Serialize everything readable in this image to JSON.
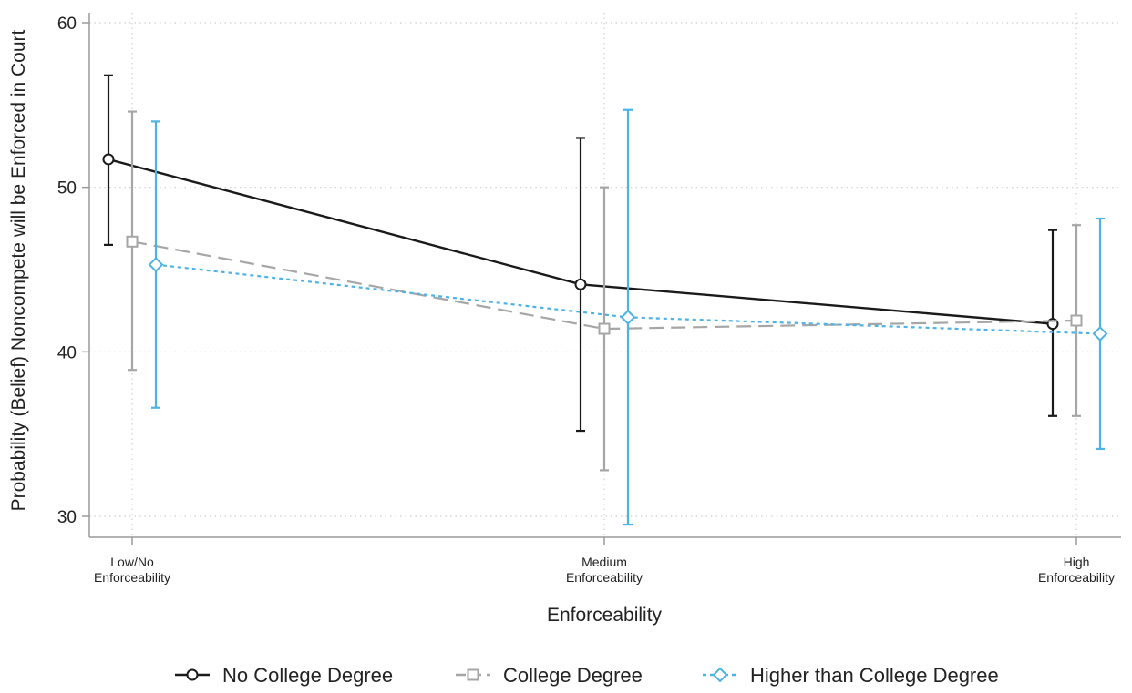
{
  "chart_data": {
    "type": "line",
    "categories": [
      "Low/No\nEnforceability",
      "Medium\nEnforceability",
      "High\nEnforceability"
    ],
    "xlabel": "Enforceability",
    "ylabel": "Probability (Belief) Noncompete will be Enforced in Court",
    "ylim": [
      30,
      60
    ],
    "yticks": [
      30,
      40,
      50,
      60
    ],
    "grid": true,
    "legend_position": "bottom",
    "series": [
      {
        "name": "No College Degree",
        "color": "#1a1a1a",
        "line_style": "solid",
        "marker": "circle",
        "values": [
          51.7,
          44.1,
          41.7
        ],
        "ci_low": [
          46.5,
          35.2,
          36.1
        ],
        "ci_high": [
          56.8,
          53.0,
          47.4
        ]
      },
      {
        "name": "College Degree",
        "color": "#a6a6a6",
        "line_style": "dashed",
        "marker": "square",
        "values": [
          46.7,
          41.4,
          41.9
        ],
        "ci_low": [
          38.9,
          32.8,
          36.1
        ],
        "ci_high": [
          54.6,
          50.0,
          47.7
        ]
      },
      {
        "name": "Higher than College Degree",
        "color": "#4db3e6",
        "line_style": "dotted",
        "marker": "diamond",
        "values": [
          45.3,
          42.1,
          41.1
        ],
        "ci_low": [
          36.6,
          29.5,
          34.1
        ],
        "ci_high": [
          54.0,
          54.7,
          48.1
        ]
      }
    ]
  }
}
